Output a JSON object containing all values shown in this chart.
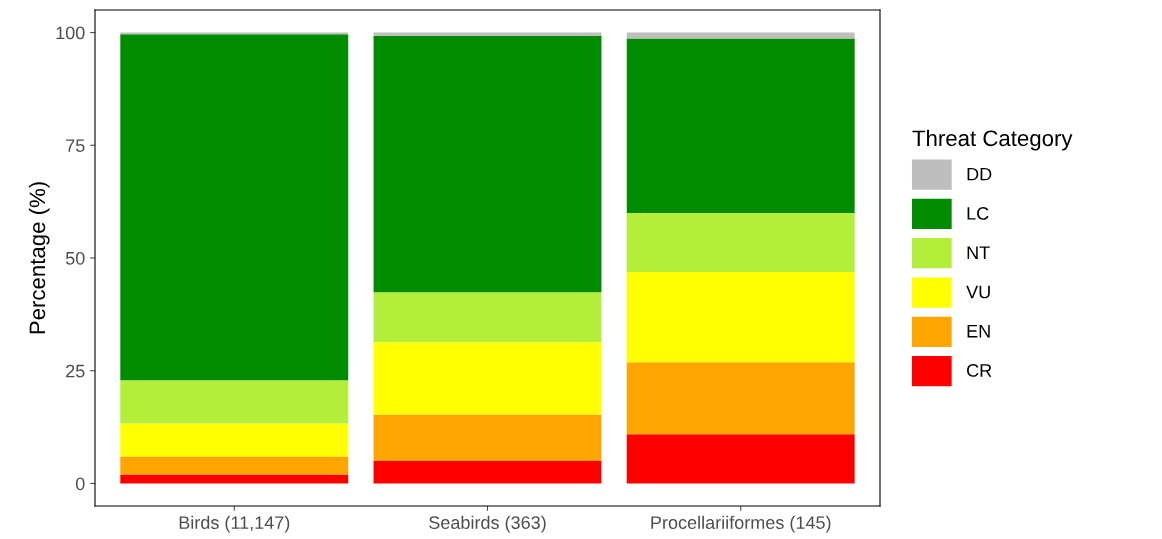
{
  "chart_data": {
    "type": "bar",
    "stacked": true,
    "ylabel": "Percentage (%)",
    "legend_title": "Threat Category",
    "legend": "right",
    "categories": [
      "Birds (11,147)",
      "Seabirds (363)",
      "Procellariiformes (145)"
    ],
    "series": [
      {
        "name": "CR",
        "color": "#ff0000",
        "values": [
          2.0,
          5.1,
          10.9
        ]
      },
      {
        "name": "EN",
        "color": "#ffa500",
        "values": [
          4.0,
          10.2,
          16.0
        ]
      },
      {
        "name": "VU",
        "color": "#ffff00",
        "values": [
          7.3,
          16.0,
          20.0
        ]
      },
      {
        "name": "NT",
        "color": "#b3ee3a",
        "values": [
          9.6,
          11.1,
          13.1
        ]
      },
      {
        "name": "LC",
        "color": "#008b00",
        "values": [
          76.7,
          56.9,
          38.7
        ]
      },
      {
        "name": "DD",
        "color": "#bebebe",
        "values": [
          0.4,
          0.7,
          1.3
        ]
      }
    ],
    "ylim": [
      -5,
      105
    ],
    "yticks": [
      0,
      25,
      50,
      75,
      100
    ],
    "grid": false
  }
}
